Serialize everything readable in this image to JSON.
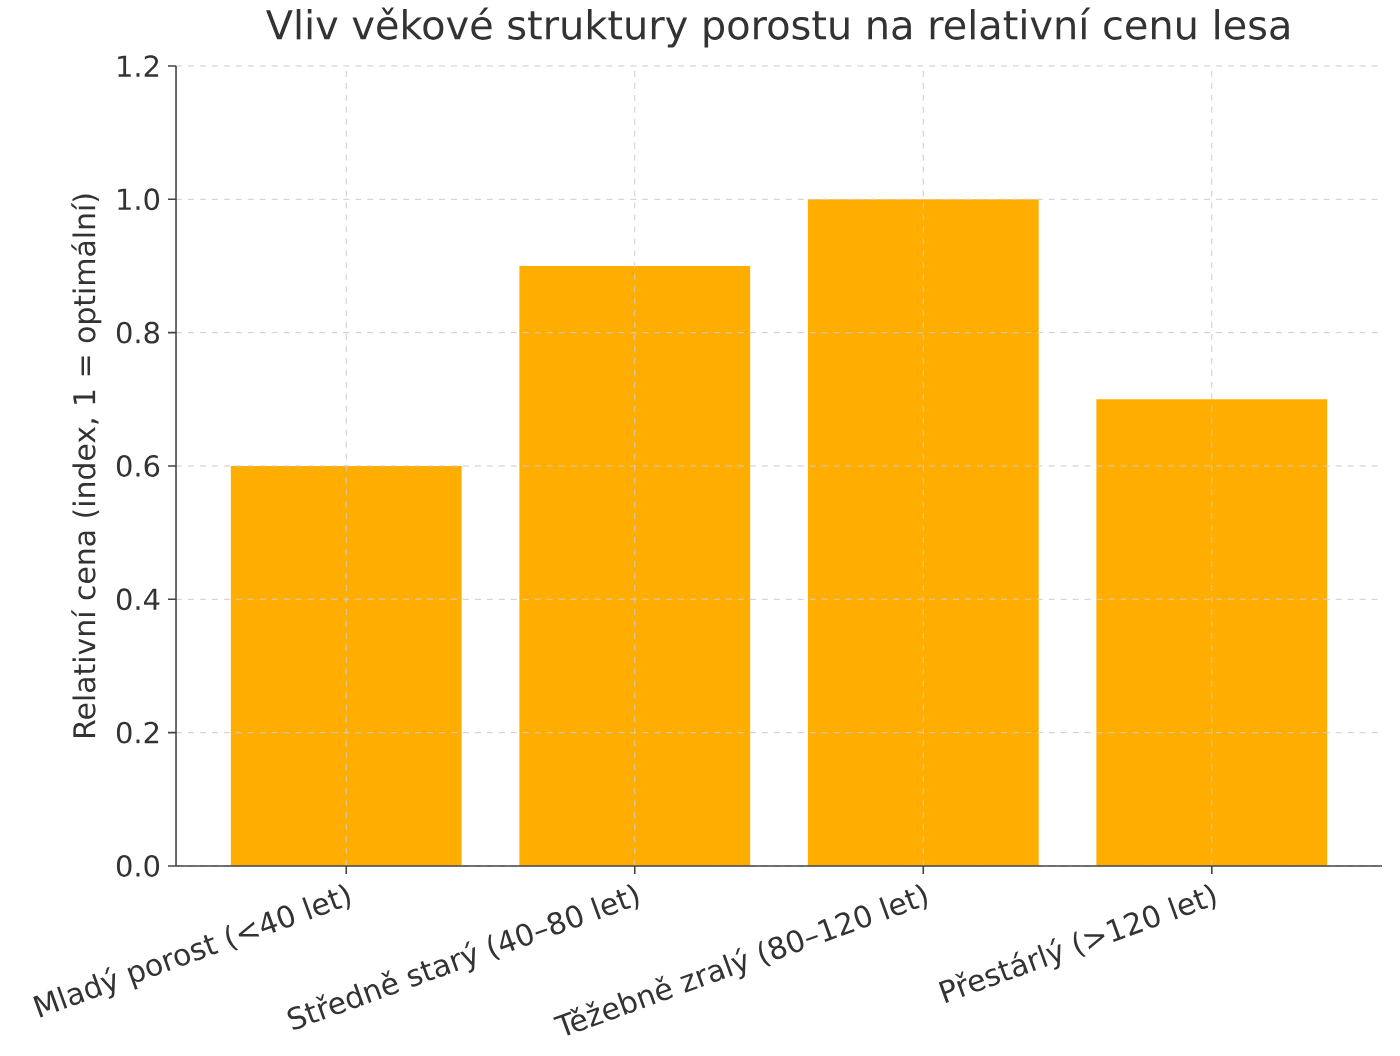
{
  "chart_data": {
    "type": "bar",
    "title": "Vliv věkové struktury porostu na relativní cenu lesa",
    "ylabel": "Relativní cena (index, 1 = optimální)",
    "categories": [
      "Mladý porost (<40 let)",
      "Středně starý (40–80 let)",
      "Těžebně zralý (80–120 let)",
      "Přestárlý (>120 let)"
    ],
    "values": [
      0.6,
      0.9,
      1.0,
      0.7
    ],
    "color": "#ffae00",
    "ylim": [
      0,
      1.2
    ],
    "yticks": [
      {
        "value": 0,
        "label": "0.0"
      },
      0.2,
      0.4,
      0.6,
      0.8,
      {
        "value": 1,
        "label": "1.0"
      },
      1.2
    ],
    "grid": true
  }
}
